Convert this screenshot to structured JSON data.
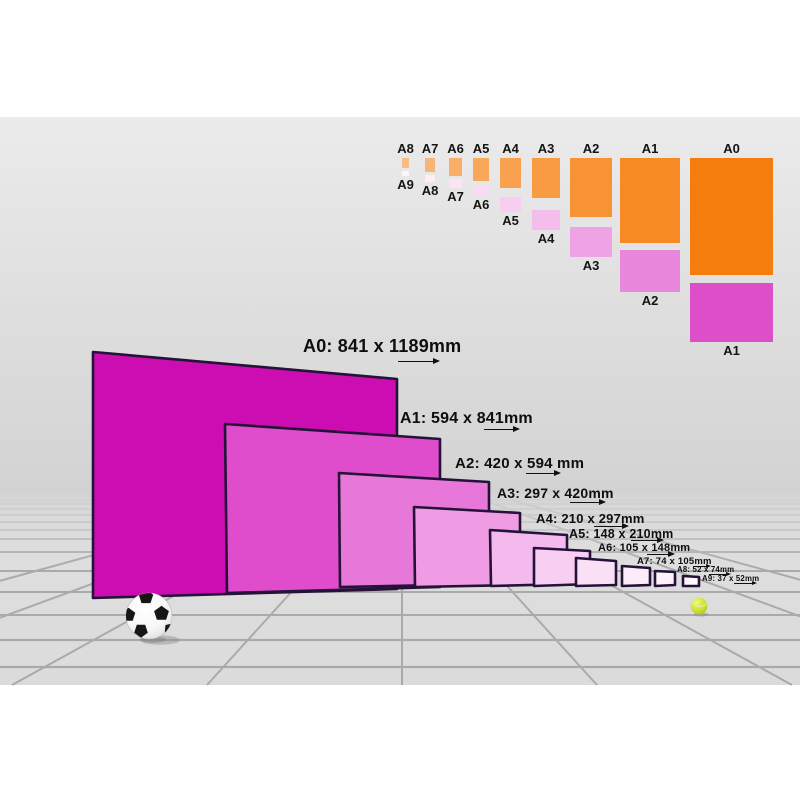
{
  "page": {
    "background": "#ffffff"
  },
  "scene": {
    "sky_color": "#e9e9e9",
    "floor_color": "#dddddd",
    "grid_line_color": "#8c8c8c"
  },
  "size_chart": {
    "columns": [
      {
        "top_label": "A8",
        "bottom_label": "A9",
        "orange": "#f8bc86",
        "pink": "#fdf5fb"
      },
      {
        "top_label": "A7",
        "bottom_label": "A8",
        "orange": "#f8b476",
        "pink": "#fcedf9"
      },
      {
        "top_label": "A6",
        "bottom_label": "A7",
        "orange": "#f9ad66",
        "pink": "#fbe4f6"
      },
      {
        "top_label": "A5",
        "bottom_label": "A6",
        "orange": "#f9a75b",
        "pink": "#fadbf4"
      },
      {
        "top_label": "A4",
        "bottom_label": "A5",
        "orange": "#f9a14e",
        "pink": "#f8cef0"
      },
      {
        "top_label": "A3",
        "bottom_label": "A4",
        "orange": "#f99b43",
        "pink": "#f5bdec"
      },
      {
        "top_label": "A2",
        "bottom_label": "A3",
        "orange": "#f89334",
        "pink": "#efa2e5"
      },
      {
        "top_label": "A1",
        "bottom_label": "A2",
        "orange": "#f78a22",
        "pink": "#e987dc"
      },
      {
        "top_label": "A0",
        "bottom_label": "A1",
        "orange": "#f47d0d",
        "pink": "#dc4fc9"
      }
    ]
  },
  "sheets": [
    {
      "name": "A0",
      "label": "A0: 841 x 1189mm",
      "fill": "#cb0db1"
    },
    {
      "name": "A1",
      "label": "A1: 594 x 841mm",
      "fill": "#df4dcd"
    },
    {
      "name": "A2",
      "label": "A2: 420 x 594 mm",
      "fill": "#e778da"
    },
    {
      "name": "A3",
      "label": "A3: 297 x 420mm",
      "fill": "#ef9ce4"
    },
    {
      "name": "A4",
      "label": "A4: 210 x 297mm",
      "fill": "#f4baee"
    },
    {
      "name": "A5",
      "label": "A5: 148 x 210mm",
      "fill": "#f8cff2"
    },
    {
      "name": "A6",
      "label": "A6: 105 x 148mm",
      "fill": "#fae0f6"
    },
    {
      "name": "A7",
      "label": "A7: 74 x 105mm",
      "fill": "#fcebf9"
    },
    {
      "name": "A8",
      "label": "A8: 52 x 74mm",
      "fill": "#fdf2fb"
    },
    {
      "name": "A9",
      "label": "A9: 37 x 52mm",
      "fill": "#fef8fd"
    }
  ],
  "objects": {
    "soccer_ball": {
      "base": "#ffffff",
      "patch": "#161616"
    },
    "tennis_ball": {
      "base": "#c3d629"
    }
  }
}
